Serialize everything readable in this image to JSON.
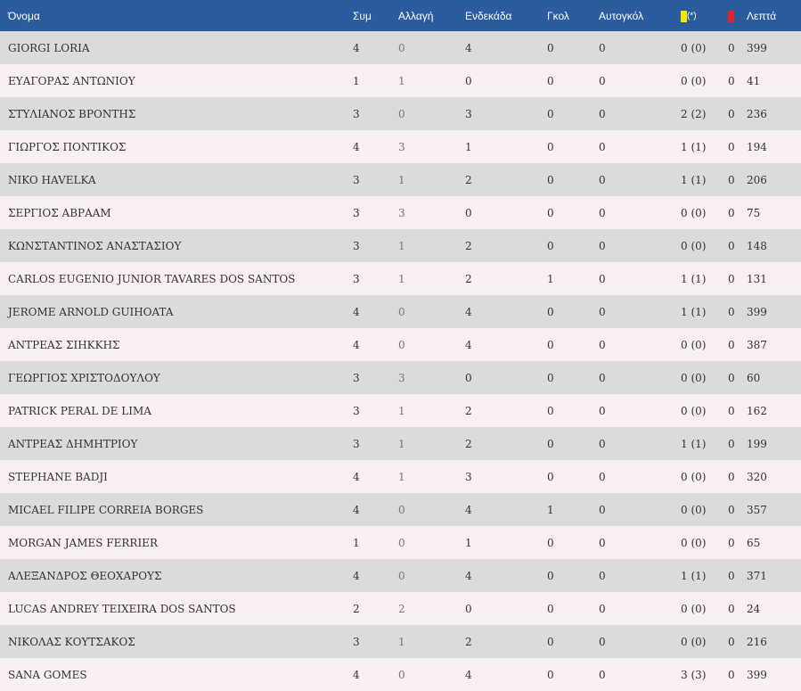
{
  "header": {
    "name": "Όνομα",
    "appearances": "Συμ",
    "substitutions": "Αλλαγή",
    "starting": "Ενδεκάδα",
    "goals": "Γκολ",
    "own_goals": "Αυτογκόλ",
    "yellow_suffix": "(*)",
    "minutes": "Λεπτά"
  },
  "colors": {
    "header_bg": "#2b5c9e",
    "row_odd": "#dbdbdb",
    "row_even": "#f8eff0",
    "yellow_card": "#f6e600",
    "red_card": "#e0242a"
  },
  "icons": {
    "yellow": "yellow-card-icon",
    "red": "red-card-icon"
  },
  "players": [
    {
      "name": "GIORGI LORIA",
      "app": "4",
      "sub": "0",
      "start": "4",
      "goals": "0",
      "own": "0",
      "yellow": "0 (0)",
      "red": "0",
      "min": "399"
    },
    {
      "name": "ΕΥΑΓΟΡΑΣ ΑΝΤΩΝΙΟΥ",
      "app": "1",
      "sub": "1",
      "start": "0",
      "goals": "0",
      "own": "0",
      "yellow": "0 (0)",
      "red": "0",
      "min": "41"
    },
    {
      "name": "ΣΤΥΛΙΑΝΟΣ ΒΡΟΝΤΗΣ",
      "app": "3",
      "sub": "0",
      "start": "3",
      "goals": "0",
      "own": "0",
      "yellow": "2 (2)",
      "red": "0",
      "min": "236"
    },
    {
      "name": "ΓΙΩΡΓΟΣ ΠΟΝΤΙΚΟΣ",
      "app": "4",
      "sub": "3",
      "start": "1",
      "goals": "0",
      "own": "0",
      "yellow": "1 (1)",
      "red": "0",
      "min": "194"
    },
    {
      "name": "NIKO HAVELKA",
      "app": "3",
      "sub": "1",
      "start": "2",
      "goals": "0",
      "own": "0",
      "yellow": "1 (1)",
      "red": "0",
      "min": "206"
    },
    {
      "name": "ΣΕΡΓΙΟΣ ΑΒΡΑΑΜ",
      "app": "3",
      "sub": "3",
      "start": "0",
      "goals": "0",
      "own": "0",
      "yellow": "0 (0)",
      "red": "0",
      "min": "75"
    },
    {
      "name": "ΚΩΝΣΤΑΝΤΙΝΟΣ ΑΝΑΣΤΑΣΙΟΥ",
      "app": "3",
      "sub": "1",
      "start": "2",
      "goals": "0",
      "own": "0",
      "yellow": "0 (0)",
      "red": "0",
      "min": "148"
    },
    {
      "name": "CARLOS EUGENIO JUNIOR TAVARES DOS SANTOS",
      "app": "3",
      "sub": "1",
      "start": "2",
      "goals": "1",
      "own": "0",
      "yellow": "1 (1)",
      "red": "0",
      "min": "131"
    },
    {
      "name": "JEROME ARNOLD GUIHOATA",
      "app": "4",
      "sub": "0",
      "start": "4",
      "goals": "0",
      "own": "0",
      "yellow": "1 (1)",
      "red": "0",
      "min": "399"
    },
    {
      "name": "ΑΝΤΡΕΑΣ ΣΙΗΚΚΗΣ",
      "app": "4",
      "sub": "0",
      "start": "4",
      "goals": "0",
      "own": "0",
      "yellow": "0 (0)",
      "red": "0",
      "min": "387"
    },
    {
      "name": "ΓΕΩΡΓΙΟΣ ΧΡΙΣΤΟΔΟΥΛΟΥ",
      "app": "3",
      "sub": "3",
      "start": "0",
      "goals": "0",
      "own": "0",
      "yellow": "0 (0)",
      "red": "0",
      "min": "60"
    },
    {
      "name": "PATRICK PERAL DE LIMA",
      "app": "3",
      "sub": "1",
      "start": "2",
      "goals": "0",
      "own": "0",
      "yellow": "0 (0)",
      "red": "0",
      "min": "162"
    },
    {
      "name": "ΑΝΤΡΕΑΣ ΔΗΜΗΤΡΙΟΥ",
      "app": "3",
      "sub": "1",
      "start": "2",
      "goals": "0",
      "own": "0",
      "yellow": "1 (1)",
      "red": "0",
      "min": "199"
    },
    {
      "name": "STEPHANE BADJI",
      "app": "4",
      "sub": "1",
      "start": "3",
      "goals": "0",
      "own": "0",
      "yellow": "0 (0)",
      "red": "0",
      "min": "320"
    },
    {
      "name": "MICAEL FILIPE CORREIA BORGES",
      "app": "4",
      "sub": "0",
      "start": "4",
      "goals": "1",
      "own": "0",
      "yellow": "0 (0)",
      "red": "0",
      "min": "357"
    },
    {
      "name": "MORGAN JAMES FERRIER",
      "app": "1",
      "sub": "0",
      "start": "1",
      "goals": "0",
      "own": "0",
      "yellow": "0 (0)",
      "red": "0",
      "min": "65"
    },
    {
      "name": "ΑΛΕΞΑΝΔΡΟΣ ΘΕΟΧΑΡΟΥΣ",
      "app": "4",
      "sub": "0",
      "start": "4",
      "goals": "0",
      "own": "0",
      "yellow": "1 (1)",
      "red": "0",
      "min": "371"
    },
    {
      "name": "LUCAS ANDREY TEIXEIRA DOS SANTOS",
      "app": "2",
      "sub": "2",
      "start": "0",
      "goals": "0",
      "own": "0",
      "yellow": "0 (0)",
      "red": "0",
      "min": "24"
    },
    {
      "name": "ΝΙΚΟΛΑΣ ΚΟΥΤΣΑΚΟΣ",
      "app": "3",
      "sub": "1",
      "start": "2",
      "goals": "0",
      "own": "0",
      "yellow": "0 (0)",
      "red": "0",
      "min": "216"
    },
    {
      "name": "SANA GOMES",
      "app": "4",
      "sub": "0",
      "start": "4",
      "goals": "0",
      "own": "0",
      "yellow": "3 (3)",
      "red": "0",
      "min": "399"
    }
  ]
}
